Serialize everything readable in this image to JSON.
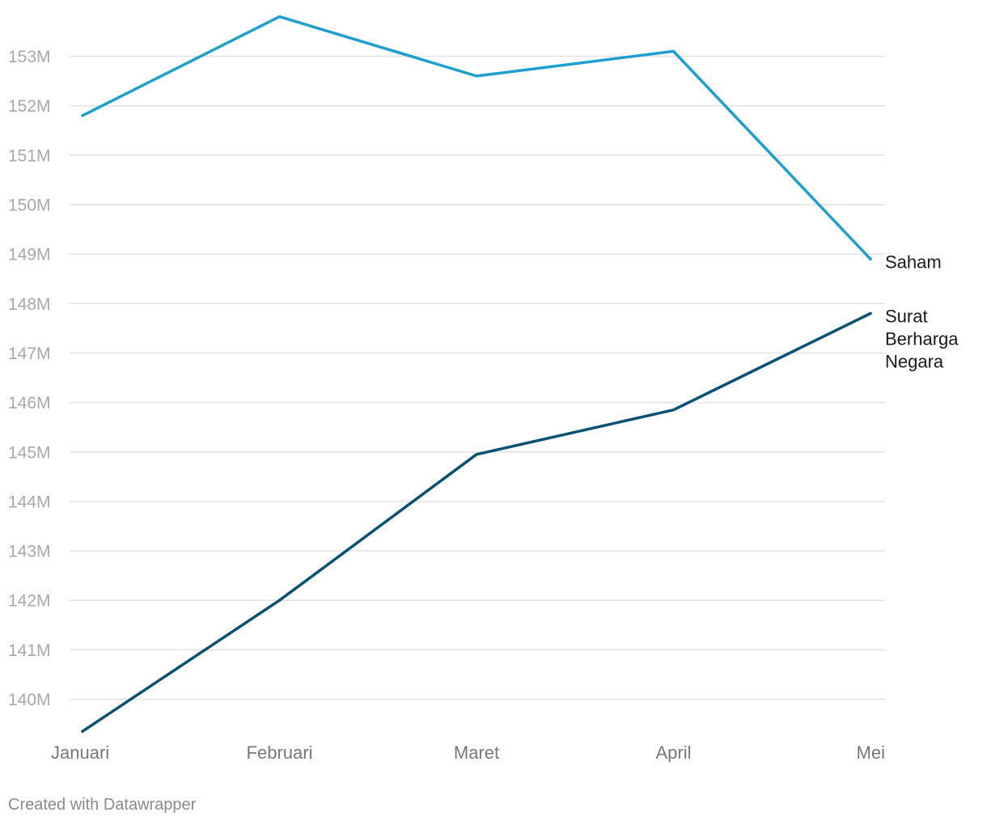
{
  "chart_data": {
    "type": "line",
    "title": "",
    "xlabel": "",
    "ylabel": "",
    "categories": [
      "Januari",
      "Februari",
      "Maret",
      "April",
      "Mei"
    ],
    "y_unit_suffix": "M",
    "ylim": [
      139.4,
      153.85
    ],
    "yticks": [
      140,
      141,
      142,
      143,
      144,
      145,
      146,
      147,
      148,
      149,
      150,
      151,
      152,
      153
    ],
    "grid": true,
    "legend": "none (direct labels at line ends)",
    "series": [
      {
        "name": "Saham",
        "label_lines": [
          "Saham"
        ],
        "color": "#1e9fd0",
        "values": [
          151.8,
          153.8,
          152.6,
          153.1,
          148.9
        ]
      },
      {
        "name": "Surat Berharga Negara",
        "label_lines": [
          "Surat",
          "Berharga",
          "Negara"
        ],
        "color": "#0a5275",
        "values": [
          139.35,
          142.0,
          144.95,
          145.85,
          147.8
        ]
      }
    ]
  },
  "footer": {
    "credit": "Created with Datawrapper"
  }
}
